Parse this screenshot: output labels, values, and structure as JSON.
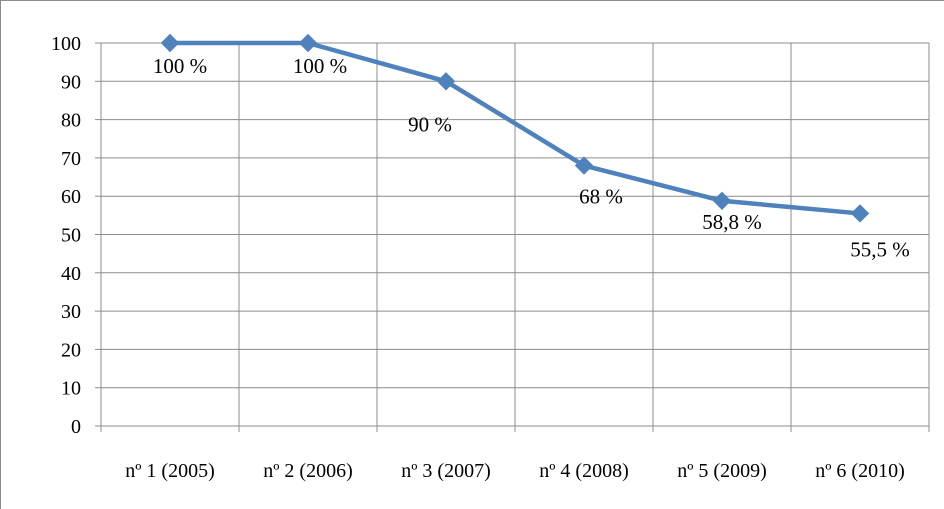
{
  "chart_data": {
    "type": "line",
    "title": "",
    "xlabel": "",
    "ylabel": "",
    "categories": [
      "nº 1 (2005)",
      "nº 2 (2006)",
      "nº 3 (2007)",
      "nº 4 (2008)",
      "nº 5 (2009)",
      "nº 6 (2010)"
    ],
    "series": [
      {
        "values": [
          100,
          100,
          90,
          68,
          58.8,
          55.5
        ],
        "data_labels": [
          "100 %",
          "100 %",
          "90 %",
          "68 %",
          "58,8 %",
          "55,5 %"
        ],
        "color": "#4f81bd",
        "marker": "diamond"
      }
    ],
    "ylim": [
      0,
      100
    ],
    "yticks": [
      "0",
      "10",
      "20",
      "30",
      "40",
      "50",
      "60",
      "70",
      "80",
      "90",
      "100"
    ],
    "grid": {
      "horizontal": true,
      "vertical": true,
      "color": "#8c8c8c"
    },
    "legend": "none"
  }
}
